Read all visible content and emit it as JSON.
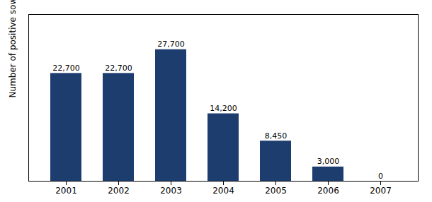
{
  "chart_data": {
    "type": "bar",
    "categories": [
      "2001",
      "2002",
      "2003",
      "2004",
      "2005",
      "2006",
      "2007"
    ],
    "values": [
      22700,
      22700,
      27700,
      14200,
      8450,
      3000,
      0
    ],
    "value_labels": [
      "22,700",
      "22,700",
      "27,700",
      "14,200",
      "8,450",
      "3,000",
      "0"
    ],
    "color": "#1C3D6E",
    "ylabel": "Number of positive sows",
    "ylim": [
      0,
      35100
    ],
    "yticks": [],
    "tick_labels": "x",
    "data_labels": true
  }
}
